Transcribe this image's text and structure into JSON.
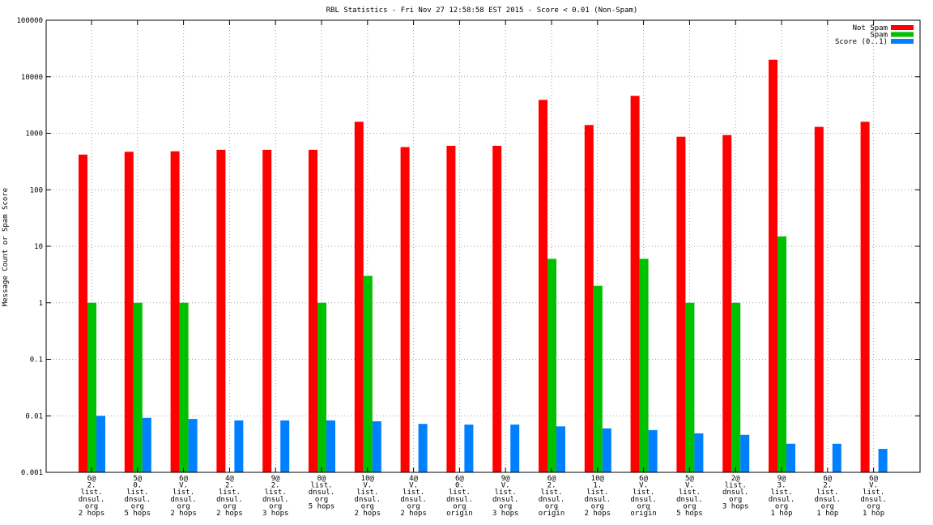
{
  "chart_data": {
    "type": "bar",
    "title": "RBL Statistics - Fri Nov 27 12:58:58 EST 2015 - Score < 0.01 (Non-Spam)",
    "xlabel": "",
    "ylabel": "Message Count or Spam Score",
    "yscale": "log",
    "ylim": [
      0.001,
      100000
    ],
    "yticks": [
      {
        "value": 0.001,
        "label": "0.001"
      },
      {
        "value": 0.01,
        "label": "0.01"
      },
      {
        "value": 0.1,
        "label": "0.1"
      },
      {
        "value": 1,
        "label": "1"
      },
      {
        "value": 10,
        "label": "10"
      },
      {
        "value": 100,
        "label": "100"
      },
      {
        "value": 1000,
        "label": "1000"
      },
      {
        "value": 10000,
        "label": "10000"
      },
      {
        "value": 100000,
        "label": "100000"
      }
    ],
    "grid": true,
    "legend_position": "top-right",
    "categories": [
      [
        "6@",
        "2.",
        "list.",
        "dnsul.",
        "org",
        "2 hops"
      ],
      [
        "5@",
        "0.",
        "list.",
        "dnsul.",
        "org",
        "5 hops"
      ],
      [
        "6@",
        "V.",
        "list.",
        "dnsul.",
        "org",
        "2 hops"
      ],
      [
        "4@",
        "2.",
        "list.",
        "dnsul.",
        "org",
        "2 hops"
      ],
      [
        "9@",
        "2.",
        "list.",
        "dnsul.",
        "org",
        "3 hops"
      ],
      [
        "0@",
        "list.",
        "dnsul.",
        "org",
        "5 hops"
      ],
      [
        "10@",
        "V.",
        "list.",
        "dnsul.",
        "org",
        "2 hops"
      ],
      [
        "4@",
        "V.",
        "list.",
        "dnsul.",
        "org",
        "2 hops"
      ],
      [
        "6@",
        "0.",
        "list.",
        "dnsul.",
        "org",
        "origin"
      ],
      [
        "9@",
        "V.",
        "list.",
        "dnsul.",
        "org",
        "3 hops"
      ],
      [
        "6@",
        "2.",
        "list.",
        "dnsul.",
        "org",
        "origin"
      ],
      [
        "10@",
        "1.",
        "list.",
        "dnsul.",
        "org",
        "2 hops"
      ],
      [
        "6@",
        "V.",
        "list.",
        "dnsul.",
        "org",
        "origin"
      ],
      [
        "5@",
        "V.",
        "list.",
        "dnsul.",
        "org",
        "5 hops"
      ],
      [
        "2@",
        "list.",
        "dnsul.",
        "org",
        "3 hops"
      ],
      [
        "9@",
        "3.",
        "list.",
        "dnsul.",
        "org",
        "1 hop"
      ],
      [
        "6@",
        "2.",
        "list.",
        "dnsul.",
        "org",
        "1 hop"
      ],
      [
        "6@",
        "V.",
        "list.",
        "dnsul.",
        "org",
        "1 hop"
      ]
    ],
    "series": [
      {
        "name": "Not Spam",
        "color": "#ff0000",
        "values": [
          420,
          470,
          480,
          510,
          510,
          510,
          1600,
          570,
          600,
          600,
          3900,
          1400,
          4600,
          870,
          930,
          20000,
          1300,
          1600
        ]
      },
      {
        "name": "Spam",
        "color": "#00c000",
        "values": [
          1,
          1,
          1,
          null,
          null,
          1,
          3,
          null,
          null,
          null,
          6,
          2,
          6,
          1,
          1,
          15,
          null,
          null
        ]
      },
      {
        "name": "Score (0..1)",
        "color": "#0080ff",
        "values": [
          0.01,
          0.0092,
          0.0088,
          0.0083,
          0.0083,
          0.0083,
          0.008,
          0.0072,
          0.007,
          0.007,
          0.0065,
          0.006,
          0.0056,
          0.0049,
          0.0046,
          0.0032,
          0.0032,
          0.0026
        ]
      }
    ]
  }
}
